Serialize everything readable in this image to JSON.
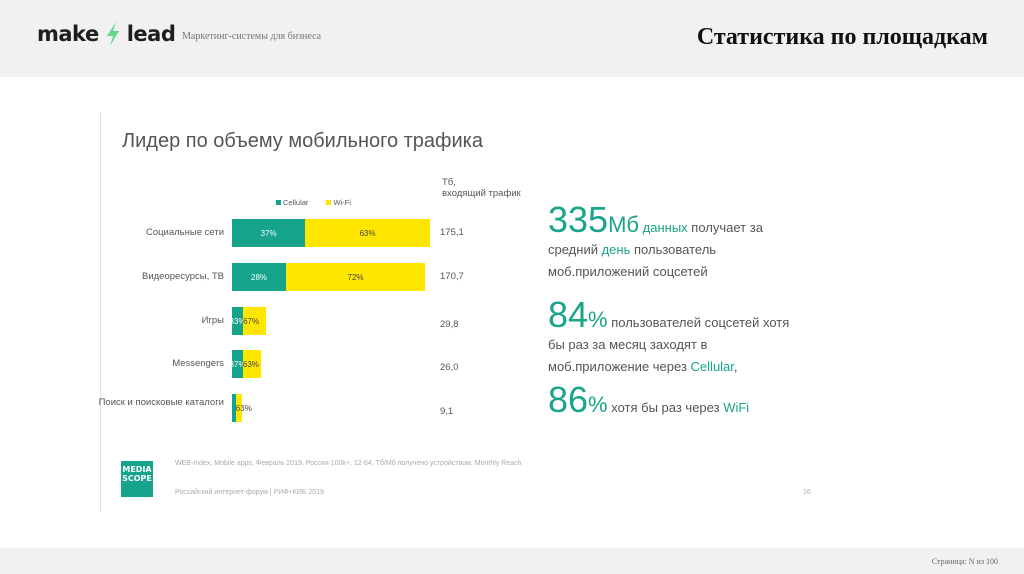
{
  "header": {
    "logo_left": "make",
    "logo_right": "lead",
    "tagline": "Маркетинг-системы для бизнеса",
    "title": "Статистика по площадкам"
  },
  "slide": {
    "title": "Лидер по объему мобильного трафика",
    "unit_label_1": "Тб,",
    "unit_label_2": "входящий трафик",
    "footnote": "WEB-Index, Mobile apps, Февраль 2019, Россия 100k+, 12-64, Тб/Мб получено устройством, Monthly Reach",
    "event": "Российский интернет-форум | РИФ+КИБ 2019",
    "slide_number": "16",
    "mediascope_logo": "MEDIA SCOPE"
  },
  "chart_data": {
    "type": "bar",
    "orientation": "horizontal-stacked",
    "legend_position": "top",
    "series": [
      {
        "name": "Cellular",
        "color": "#16a38c"
      },
      {
        "name": "Wi-Fi",
        "color": "#ffe600"
      }
    ],
    "categories": [
      "Социальные сети",
      "Видеоресурсы, ТВ",
      "Игры",
      "Messengers",
      "Поиск и поисковые каталоги"
    ],
    "totals": [
      175.1,
      170.7,
      29.8,
      26.0,
      9.1
    ],
    "total_labels": [
      "175,1",
      "170,7",
      "29,8",
      "26,0",
      "9,1"
    ],
    "cellular_pct": [
      37,
      28,
      33,
      37,
      null
    ],
    "wifi_pct": [
      63,
      72,
      67,
      63,
      63
    ],
    "cellular_labels": [
      "37%",
      "28%",
      "33%",
      "37%",
      ""
    ],
    "wifi_labels": [
      "63%",
      "72%",
      "67%",
      "63%",
      "63%"
    ]
  },
  "stats": {
    "s1_num": "335",
    "s1_unit": "Мб",
    "s1_hl": "данных",
    "s1_a": "получает за",
    "s1_b": "средний",
    "s1_hl2": "день",
    "s1_c": "пользователь",
    "s1_d": "моб.приложений соцсетей",
    "s2_num": "84",
    "s2_unit": "%",
    "s2_a": "пользователей соцсетей хотя",
    "s2_b": "бы раз за месяц заходят в",
    "s2_c": "моб.приложение через",
    "s2_hl": "Cellular",
    "s2_d": ",",
    "s3_num": "86",
    "s3_unit": "%",
    "s3_a": "хотя бы раз через",
    "s3_hl": "WiFi"
  },
  "footer": {
    "page": "Страница: N из 100"
  }
}
